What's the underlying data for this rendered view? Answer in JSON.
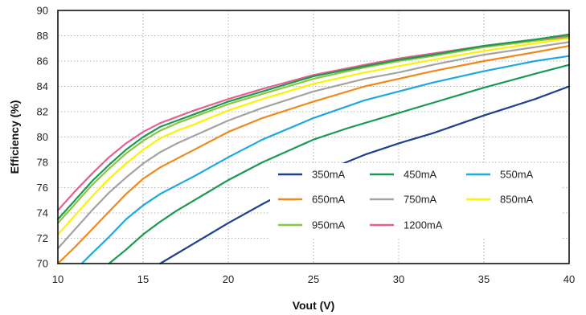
{
  "chart_data": {
    "type": "line",
    "title": "",
    "xlabel": "Vout (V)",
    "ylabel": "Efficiency (%)",
    "xlim": [
      10,
      40
    ],
    "ylim": [
      70,
      90
    ],
    "xticks": [
      10,
      15,
      20,
      25,
      30,
      35,
      40
    ],
    "yticks": [
      70,
      72,
      74,
      76,
      78,
      80,
      82,
      84,
      86,
      88,
      90
    ],
    "grid": true,
    "legend_position": "lower-right",
    "series": [
      {
        "name": "350mA",
        "color": "#1f3f8f",
        "points": [
          [
            16,
            70.0
          ],
          [
            18,
            71.6
          ],
          [
            20,
            73.2
          ],
          [
            22,
            74.7
          ],
          [
            24,
            76.1
          ],
          [
            26,
            77.5
          ],
          [
            28,
            78.6
          ],
          [
            30,
            79.5
          ],
          [
            32,
            80.3
          ],
          [
            35,
            81.7
          ],
          [
            38,
            83.0
          ],
          [
            40,
            84.0
          ]
        ]
      },
      {
        "name": "450mA",
        "color": "#1a9a50",
        "points": [
          [
            13,
            70.0
          ],
          [
            14,
            71.1
          ],
          [
            15,
            72.3
          ],
          [
            16,
            73.3
          ],
          [
            17,
            74.2
          ],
          [
            18,
            75.0
          ],
          [
            20,
            76.6
          ],
          [
            22,
            78.0
          ],
          [
            24,
            79.2
          ],
          [
            25,
            79.8
          ],
          [
            27,
            80.7
          ],
          [
            30,
            81.9
          ],
          [
            32,
            82.7
          ],
          [
            35,
            83.9
          ],
          [
            38,
            85.0
          ],
          [
            40,
            85.7
          ]
        ]
      },
      {
        "name": "550mA",
        "color": "#1fa8e0",
        "points": [
          [
            11.4,
            70.0
          ],
          [
            12,
            70.8
          ],
          [
            13,
            72.1
          ],
          [
            14,
            73.5
          ],
          [
            15,
            74.6
          ],
          [
            16,
            75.5
          ],
          [
            17,
            76.2
          ],
          [
            18,
            76.9
          ],
          [
            20,
            78.4
          ],
          [
            22,
            79.8
          ],
          [
            25,
            81.5
          ],
          [
            28,
            82.9
          ],
          [
            30,
            83.6
          ],
          [
            32,
            84.3
          ],
          [
            35,
            85.2
          ],
          [
            38,
            86.0
          ],
          [
            40,
            86.4
          ]
        ]
      },
      {
        "name": "650mA",
        "color": "#f0891a",
        "points": [
          [
            10,
            70.0
          ],
          [
            11,
            71.3
          ],
          [
            12,
            72.7
          ],
          [
            13,
            74.1
          ],
          [
            14,
            75.5
          ],
          [
            15,
            76.7
          ],
          [
            16,
            77.6
          ],
          [
            17,
            78.3
          ],
          [
            18,
            79.0
          ],
          [
            20,
            80.4
          ],
          [
            22,
            81.5
          ],
          [
            25,
            82.8
          ],
          [
            28,
            84.0
          ],
          [
            30,
            84.6
          ],
          [
            32,
            85.2
          ],
          [
            35,
            86.0
          ],
          [
            38,
            86.7
          ],
          [
            40,
            87.2
          ]
        ]
      },
      {
        "name": "750mA",
        "color": "#a3a3a3",
        "points": [
          [
            10,
            71.2
          ],
          [
            11,
            72.7
          ],
          [
            12,
            74.2
          ],
          [
            13,
            75.6
          ],
          [
            14,
            76.8
          ],
          [
            15,
            77.9
          ],
          [
            16,
            78.8
          ],
          [
            17,
            79.5
          ],
          [
            18,
            80.1
          ],
          [
            20,
            81.3
          ],
          [
            22,
            82.3
          ],
          [
            25,
            83.6
          ],
          [
            28,
            84.6
          ],
          [
            30,
            85.1
          ],
          [
            32,
            85.7
          ],
          [
            35,
            86.5
          ],
          [
            38,
            87.1
          ],
          [
            40,
            87.5
          ]
        ]
      },
      {
        "name": "850mA",
        "color": "#fff200",
        "points": [
          [
            10,
            72.3
          ],
          [
            11,
            73.8
          ],
          [
            12,
            75.3
          ],
          [
            13,
            76.7
          ],
          [
            14,
            77.9
          ],
          [
            15,
            79.0
          ],
          [
            16,
            79.9
          ],
          [
            17,
            80.5
          ],
          [
            18,
            81.0
          ],
          [
            20,
            82.1
          ],
          [
            22,
            83.0
          ],
          [
            25,
            84.2
          ],
          [
            28,
            85.1
          ],
          [
            30,
            85.6
          ],
          [
            32,
            86.1
          ],
          [
            35,
            86.8
          ],
          [
            38,
            87.4
          ],
          [
            40,
            87.8
          ]
        ]
      },
      {
        "name": "950mA",
        "color": "#8cc63f",
        "points": [
          [
            10,
            73.2
          ],
          [
            11,
            74.7
          ],
          [
            12,
            76.2
          ],
          [
            13,
            77.5
          ],
          [
            14,
            78.7
          ],
          [
            15,
            79.7
          ],
          [
            16,
            80.5
          ],
          [
            17,
            81.1
          ],
          [
            18,
            81.6
          ],
          [
            20,
            82.6
          ],
          [
            22,
            83.4
          ],
          [
            25,
            84.6
          ],
          [
            28,
            85.5
          ],
          [
            30,
            86.0
          ],
          [
            32,
            86.4
          ],
          [
            35,
            87.1
          ],
          [
            38,
            87.6
          ],
          [
            40,
            87.9
          ]
        ]
      },
      {
        "name": "1200mA",
        "color": "#e85f8f",
        "points": [
          [
            10,
            74.2
          ],
          [
            11,
            75.7
          ],
          [
            12,
            77.1
          ],
          [
            13,
            78.4
          ],
          [
            14,
            79.5
          ],
          [
            15,
            80.4
          ],
          [
            16,
            81.1
          ],
          [
            17,
            81.6
          ],
          [
            18,
            82.1
          ],
          [
            20,
            83.0
          ],
          [
            22,
            83.8
          ],
          [
            25,
            84.9
          ],
          [
            28,
            85.7
          ],
          [
            30,
            86.2
          ],
          [
            32,
            86.6
          ],
          [
            35,
            87.2
          ],
          [
            38,
            87.7
          ],
          [
            40,
            88.0
          ]
        ]
      },
      {
        "name": "",
        "color": "#1a9a50",
        "legend": false,
        "points": [
          [
            10,
            73.5
          ],
          [
            11,
            75.0
          ],
          [
            12,
            76.5
          ],
          [
            13,
            77.8
          ],
          [
            14,
            79.0
          ],
          [
            15,
            80.0
          ],
          [
            16,
            80.8
          ],
          [
            17,
            81.3
          ],
          [
            18,
            81.8
          ],
          [
            20,
            82.8
          ],
          [
            22,
            83.6
          ],
          [
            25,
            84.8
          ],
          [
            28,
            85.6
          ],
          [
            30,
            86.1
          ],
          [
            32,
            86.5
          ],
          [
            35,
            87.2
          ],
          [
            38,
            87.7
          ],
          [
            40,
            88.1
          ]
        ]
      }
    ],
    "legend": [
      {
        "label": "350mA",
        "color": "#1f3f8f"
      },
      {
        "label": "450mA",
        "color": "#1a9a50"
      },
      {
        "label": "550mA",
        "color": "#1fa8e0"
      },
      {
        "label": "650mA",
        "color": "#f0891a"
      },
      {
        "label": "750mA",
        "color": "#a3a3a3"
      },
      {
        "label": "850mA",
        "color": "#fff200"
      },
      {
        "label": "950mA",
        "color": "#8cc63f"
      },
      {
        "label": "1200mA",
        "color": "#e85f8f"
      }
    ]
  }
}
